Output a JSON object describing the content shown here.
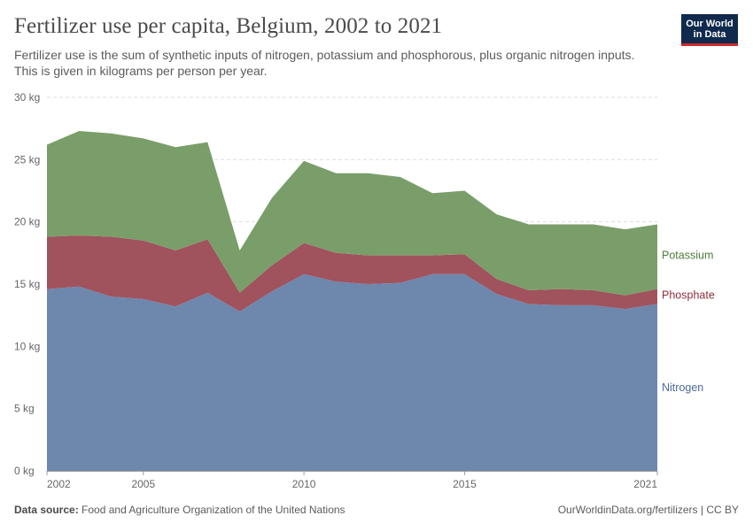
{
  "header": {
    "title": "Fertilizer use per capita, Belgium, 2002 to 2021",
    "subtitle": "Fertilizer use is the sum of synthetic inputs of nitrogen, potassium and phosphorous, plus organic nitrogen inputs. This is given in kilograms per person per year.",
    "logo_line1": "Our World",
    "logo_line2": "in Data"
  },
  "footer": {
    "source_label": "Data source:",
    "source_text": "Food and Agriculture Organization of the United Nations",
    "credit": "OurWorldinData.org/fertilizers | CC BY"
  },
  "colors": {
    "nitrogen": "#6e87ad",
    "phosphate": "#a0525d",
    "potassium": "#7a9e6a",
    "nitrogen_label": "#4c6a9c",
    "phosphate_label": "#8c2f3b",
    "potassium_label": "#4d7a3a",
    "grid": "#dddddd"
  },
  "chart_data": {
    "type": "area",
    "stacked": true,
    "title": "Fertilizer use per capita, Belgium, 2002 to 2021",
    "x": [
      2002,
      2003,
      2004,
      2005,
      2006,
      2007,
      2008,
      2009,
      2010,
      2011,
      2012,
      2013,
      2014,
      2015,
      2016,
      2017,
      2018,
      2019,
      2020,
      2021
    ],
    "series": [
      {
        "name": "Nitrogen",
        "values": [
          14.6,
          14.8,
          14.0,
          13.8,
          13.2,
          14.3,
          12.8,
          14.4,
          15.8,
          15.2,
          15.0,
          15.1,
          15.8,
          15.8,
          14.2,
          13.4,
          13.3,
          13.3,
          13.0,
          13.4
        ]
      },
      {
        "name": "Phosphate",
        "values": [
          4.2,
          4.1,
          4.8,
          4.7,
          4.5,
          4.3,
          1.5,
          2.1,
          2.5,
          2.3,
          2.3,
          2.2,
          1.5,
          1.6,
          1.2,
          1.1,
          1.3,
          1.2,
          1.1,
          1.2
        ]
      },
      {
        "name": "Potassium",
        "values": [
          7.4,
          8.4,
          8.3,
          8.2,
          8.3,
          7.8,
          3.4,
          5.4,
          6.6,
          6.4,
          6.6,
          6.3,
          5.0,
          5.1,
          5.2,
          5.3,
          5.2,
          5.3,
          5.3,
          5.2
        ]
      }
    ],
    "y_ticks": [
      {
        "value": 0,
        "label": "0 kg"
      },
      {
        "value": 5,
        "label": "5 kg"
      },
      {
        "value": 10,
        "label": "10 kg"
      },
      {
        "value": 15,
        "label": "15 kg"
      },
      {
        "value": 20,
        "label": "20 kg"
      },
      {
        "value": 25,
        "label": "25 kg"
      },
      {
        "value": 30,
        "label": "30 kg"
      }
    ],
    "x_ticks": [
      {
        "value": 2002,
        "label": "2002"
      },
      {
        "value": 2005,
        "label": "2005"
      },
      {
        "value": 2010,
        "label": "2010"
      },
      {
        "value": 2015,
        "label": "2015"
      },
      {
        "value": 2021,
        "label": "2021"
      }
    ],
    "xlim": [
      2002,
      2021
    ],
    "ylim": [
      0,
      30
    ],
    "grid": true,
    "legend": "right, inline labels"
  }
}
